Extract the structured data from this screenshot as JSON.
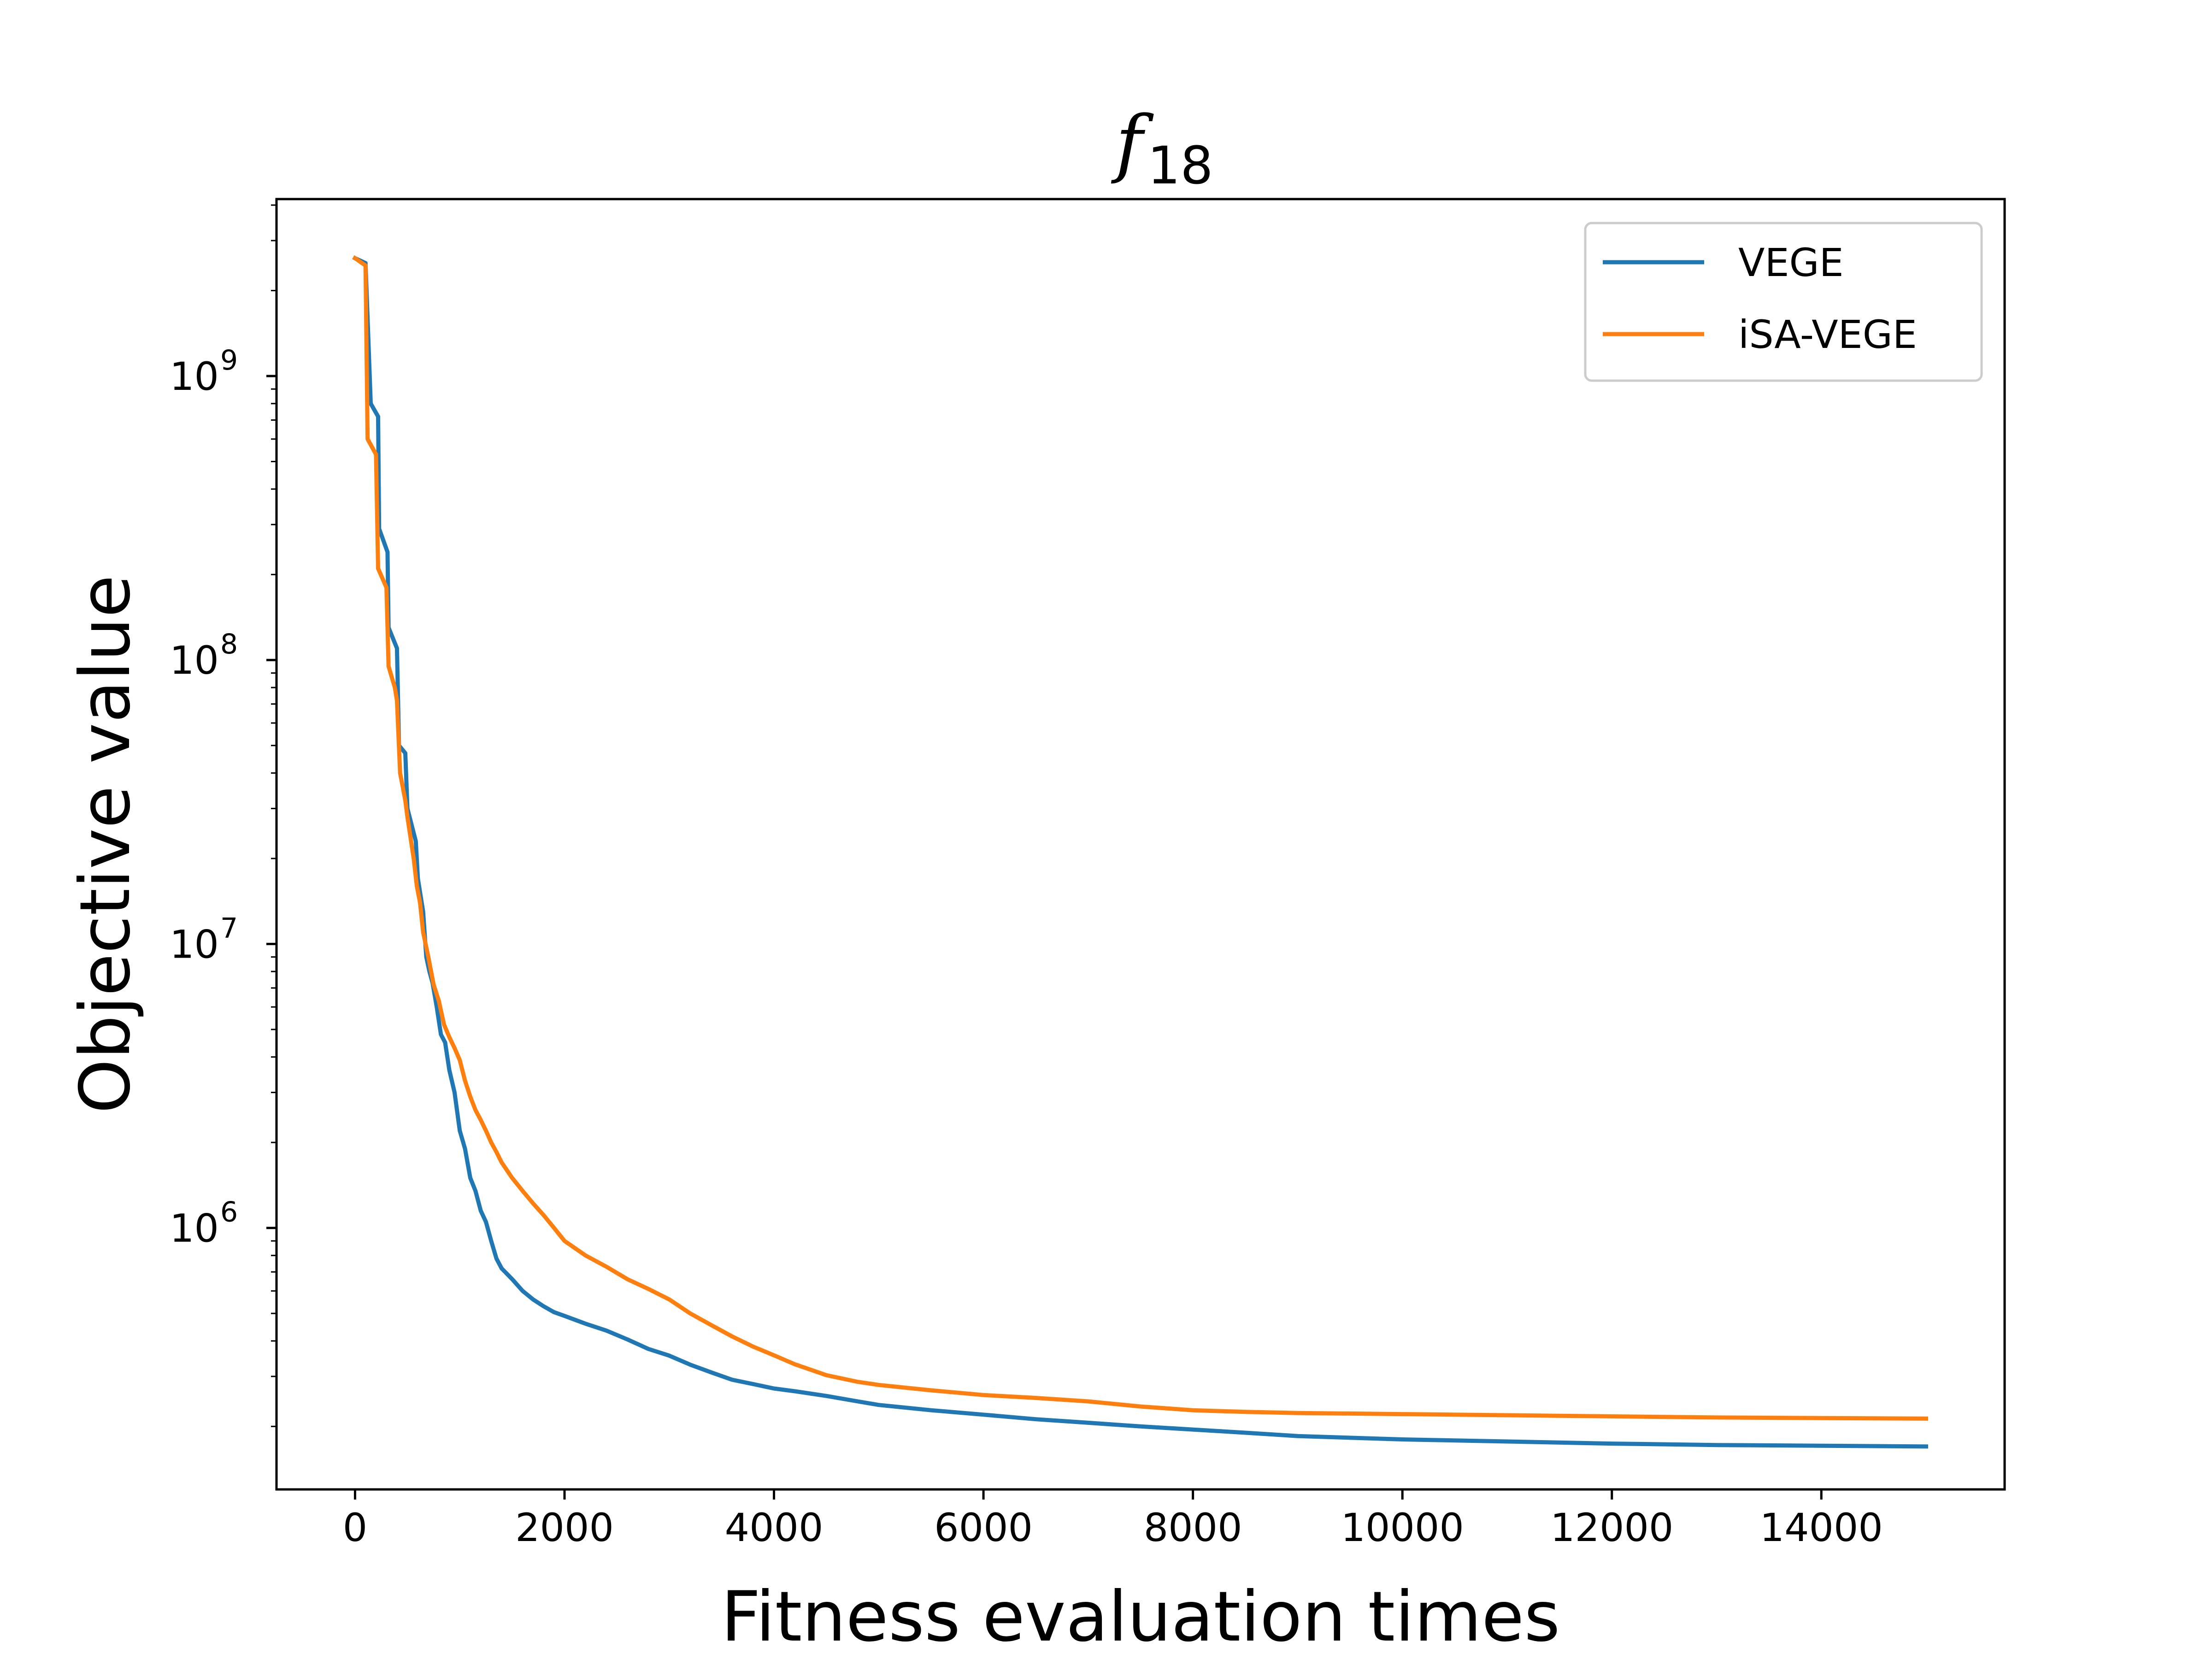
{
  "chart_data": {
    "type": "line",
    "title": {
      "main": "f",
      "subscript": "18"
    },
    "xlabel": "Fitness evaluation times",
    "ylabel": "Objective value",
    "xlim": [
      -750,
      15750
    ],
    "ylim": [
      120000,
      4200000000
    ],
    "yscale": "log",
    "grid": false,
    "legend_position": "upper right",
    "x_ticks": [
      {
        "value": 0,
        "label": "0"
      },
      {
        "value": 2000,
        "label": "2000"
      },
      {
        "value": 4000,
        "label": "4000"
      },
      {
        "value": 6000,
        "label": "6000"
      },
      {
        "value": 8000,
        "label": "8000"
      },
      {
        "value": 10000,
        "label": "10000"
      },
      {
        "value": 12000,
        "label": "12000"
      },
      {
        "value": 14000,
        "label": "14000"
      }
    ],
    "y_ticks": [
      {
        "value": 1000000,
        "base": "10",
        "exp": "6"
      },
      {
        "value": 10000000,
        "base": "10",
        "exp": "7"
      },
      {
        "value": 100000000,
        "base": "10",
        "exp": "8"
      },
      {
        "value": 1000000000,
        "base": "10",
        "exp": "9"
      }
    ],
    "series": [
      {
        "name": "VEGE",
        "color": "#1f77b4",
        "x": [
          0,
          100,
          150,
          220,
          230,
          310,
          320,
          400,
          420,
          480,
          500,
          580,
          600,
          650,
          680,
          710,
          740,
          780,
          820,
          860,
          900,
          950,
          1000,
          1050,
          1100,
          1150,
          1200,
          1250,
          1300,
          1350,
          1400,
          1500,
          1600,
          1700,
          1800,
          1900,
          2000,
          2200,
          2400,
          2600,
          2800,
          3000,
          3200,
          3400,
          3600,
          3800,
          4000,
          4200,
          4500,
          4800,
          5000,
          5500,
          6000,
          6500,
          7000,
          7500,
          8000,
          8500,
          9000,
          10000,
          11000,
          12000,
          13000,
          14000,
          15000
        ],
        "y": [
          2600000000,
          2500000000,
          800000000,
          720000000,
          290000000,
          240000000,
          130000000,
          110000000,
          50000000,
          47000000,
          30000000,
          23000000,
          17000000,
          13000000,
          9000000,
          8000000,
          7300000,
          6000000,
          4800000,
          4500000,
          3600000,
          3000000,
          2200000,
          1900000,
          1500000,
          1350000,
          1150000,
          1050000,
          900000,
          780000,
          720000,
          660000,
          600000,
          560000,
          530000,
          505000,
          490000,
          460000,
          435000,
          405000,
          375000,
          355000,
          330000,
          310000,
          292000,
          282000,
          272000,
          266000,
          256000,
          245000,
          238000,
          228000,
          220000,
          212000,
          206000,
          200000,
          195000,
          190000,
          185000,
          180000,
          177000,
          174000,
          172000,
          171000,
          170000
        ]
      },
      {
        "name": "iSA-VEGE",
        "color": "#ff7f0e",
        "x": [
          0,
          100,
          120,
          200,
          220,
          300,
          320,
          380,
          400,
          430,
          480,
          500,
          560,
          590,
          620,
          650,
          700,
          750,
          800,
          850,
          900,
          950,
          1000,
          1050,
          1100,
          1150,
          1200,
          1250,
          1300,
          1350,
          1400,
          1500,
          1600,
          1700,
          1800,
          1900,
          2000,
          2200,
          2400,
          2600,
          2800,
          3000,
          3200,
          3400,
          3600,
          3800,
          4000,
          4200,
          4500,
          4800,
          5000,
          5500,
          6000,
          6500,
          7000,
          7500,
          8000,
          8500,
          9000,
          10000,
          11000,
          12000,
          13000,
          14000,
          15000
        ],
        "y": [
          2600000000,
          2450000000,
          600000000,
          530000000,
          210000000,
          180000000,
          95000000,
          80000000,
          72000000,
          40000000,
          32000000,
          28000000,
          20000000,
          16000000,
          14000000,
          11000000,
          9000000,
          7200000,
          6300000,
          5200000,
          4700000,
          4300000,
          3900000,
          3300000,
          2900000,
          2600000,
          2400000,
          2200000,
          2000000,
          1850000,
          1700000,
          1500000,
          1350000,
          1220000,
          1110000,
          1000000,
          900000,
          800000,
          730000,
          660000,
          610000,
          560000,
          500000,
          455000,
          415000,
          382000,
          356000,
          331000,
          303000,
          287000,
          280000,
          268000,
          258000,
          252000,
          245000,
          235000,
          228000,
          225000,
          223000,
          221000,
          219000,
          217000,
          215000,
          214000,
          213000
        ]
      }
    ]
  }
}
